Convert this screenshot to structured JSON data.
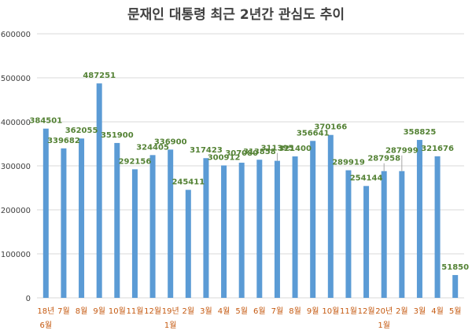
{
  "chart_data": {
    "type": "bar",
    "title": "문재인 대통령 최근 2년간 관심도 추이",
    "xlabel": "",
    "ylabel": "",
    "ylim": [
      0,
      600000
    ],
    "yticks": [
      0,
      100000,
      200000,
      300000,
      400000,
      500000,
      600000
    ],
    "grid": true,
    "categories": [
      {
        "line1": "18년",
        "line2": "6월"
      },
      {
        "line1": "7월",
        "line2": ""
      },
      {
        "line1": "8월",
        "line2": ""
      },
      {
        "line1": "9월",
        "line2": ""
      },
      {
        "line1": "10월",
        "line2": ""
      },
      {
        "line1": "11월",
        "line2": ""
      },
      {
        "line1": "12월",
        "line2": ""
      },
      {
        "line1": "19년",
        "line2": "1월"
      },
      {
        "line1": "2월",
        "line2": ""
      },
      {
        "line1": "3월",
        "line2": ""
      },
      {
        "line1": "4월",
        "line2": ""
      },
      {
        "line1": "5월",
        "line2": ""
      },
      {
        "line1": "6월",
        "line2": ""
      },
      {
        "line1": "7월",
        "line2": ""
      },
      {
        "line1": "8월",
        "line2": ""
      },
      {
        "line1": "9월",
        "line2": ""
      },
      {
        "line1": "10월",
        "line2": ""
      },
      {
        "line1": "11월",
        "line2": ""
      },
      {
        "line1": "12월",
        "line2": ""
      },
      {
        "line1": "20년",
        "line2": "1월"
      },
      {
        "line1": "2월",
        "line2": ""
      },
      {
        "line1": "3월",
        "line2": ""
      },
      {
        "line1": "4월",
        "line2": ""
      },
      {
        "line1": "5월",
        "line2": ""
      }
    ],
    "values": [
      384501,
      339682,
      362055,
      487251,
      351900,
      292156,
      324405,
      336900,
      245411,
      317423,
      300912,
      307080,
      313858,
      311395,
      321400,
      356641,
      370166,
      289919,
      254144,
      287958,
      287999,
      358825,
      321676,
      51850
    ],
    "colors": {
      "bar": "#5b9bd5",
      "data_label": "#548235",
      "category_label": "#c55a11",
      "tick_label": "#404040",
      "grid": "#d9d9d9",
      "title": "#404040"
    }
  }
}
